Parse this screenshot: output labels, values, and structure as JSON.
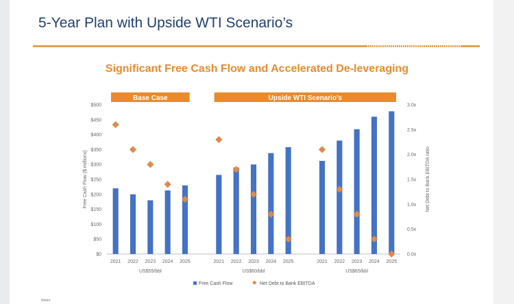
{
  "slide": {
    "title": "5-Year Plan with Upside WTI Scenario’s",
    "notes": "Notes:"
  },
  "colors": {
    "title_text": "#1f3f73",
    "accent_orange": "#e88b2e",
    "bar_blue": "#4472c4",
    "marker_orange": "#e0894a"
  },
  "chart_data": {
    "type": "bar",
    "title": "Significant Free Cash Flow and Accelerated De-leveraging",
    "ylabel": "Free Cash Flow ($ millions)",
    "y2label": "Net Debt to Bank EBITDA ratio",
    "ylim": [
      0,
      500
    ],
    "y2lim": [
      0,
      3.0
    ],
    "yticks": [
      "$0",
      "$50",
      "$100",
      "$150",
      "$200",
      "$250",
      "$300",
      "$350",
      "$400",
      "$450",
      "$500"
    ],
    "y2ticks": [
      "0.0x",
      "0.5x",
      "1.0x",
      "1.5x",
      "2.0x",
      "2.5x",
      "3.0x"
    ],
    "banners": [
      {
        "label": "Base Case",
        "groups": [
          0
        ]
      },
      {
        "label": "Upside WTI Scenario’s",
        "groups": [
          1,
          2
        ]
      }
    ],
    "groups": [
      {
        "label": "US$55/bbl",
        "categories": [
          "2021",
          "2022",
          "2023",
          "2024",
          "2025"
        ],
        "fcf": [
          220,
          200,
          180,
          213,
          230
        ],
        "leverage": [
          2.6,
          2.1,
          1.8,
          1.4,
          1.1
        ]
      },
      {
        "label": "US$60/bbl",
        "categories": [
          "2021",
          "2022",
          "2023",
          "2024",
          "2025"
        ],
        "fcf": [
          265,
          290,
          300,
          338,
          358
        ],
        "leverage": [
          2.3,
          1.7,
          1.2,
          0.8,
          0.3
        ]
      },
      {
        "label": "US$65/bbl",
        "categories": [
          "2021",
          "2022",
          "2023",
          "2024",
          "2025"
        ],
        "fcf": [
          312,
          380,
          418,
          460,
          478
        ],
        "leverage": [
          2.1,
          1.3,
          0.8,
          0.3,
          0.0
        ]
      }
    ],
    "series": [
      {
        "name": "Free Cash Flow",
        "kind": "bar",
        "color": "#4472c4"
      },
      {
        "name": "Net Debt to Bank EBITDA",
        "kind": "marker",
        "color": "#e0894a"
      }
    ],
    "legend": "bottom-center",
    "grid": false
  }
}
